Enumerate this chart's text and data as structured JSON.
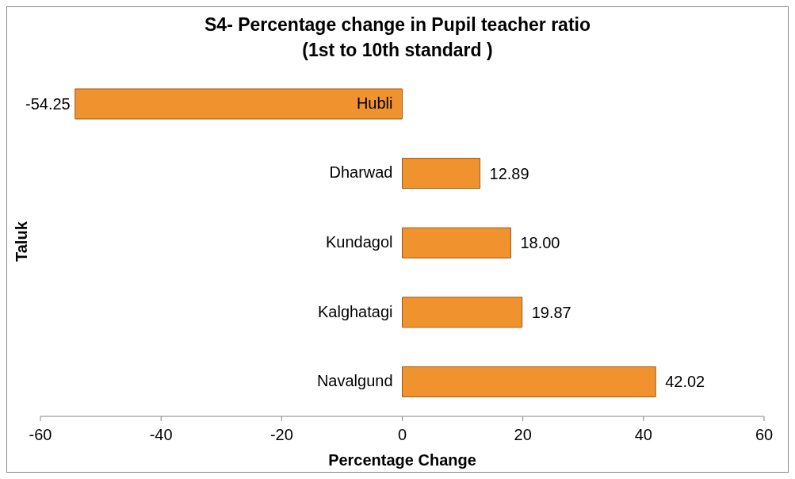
{
  "chart_data": {
    "type": "bar",
    "orientation": "horizontal",
    "title": "S4- Percentage change in Pupil teacher ratio\n(1st to 10th standard )",
    "xlabel": "Percentage Change",
    "ylabel": "Taluk",
    "categories": [
      "Hubli",
      "Dharwad",
      "Kundagol",
      "Kalghatagi",
      "Navalgund"
    ],
    "values": [
      -54.25,
      12.89,
      18,
      19.87,
      42.02
    ],
    "value_labels": [
      "-54.25",
      "12.89",
      "18.00",
      "19.87",
      "42.02"
    ],
    "color": "#f0922e",
    "xlim": [
      -60,
      60
    ],
    "xticks": [
      -60,
      -40,
      -20,
      0,
      20,
      40,
      60
    ],
    "grid": false,
    "legend": false
  }
}
